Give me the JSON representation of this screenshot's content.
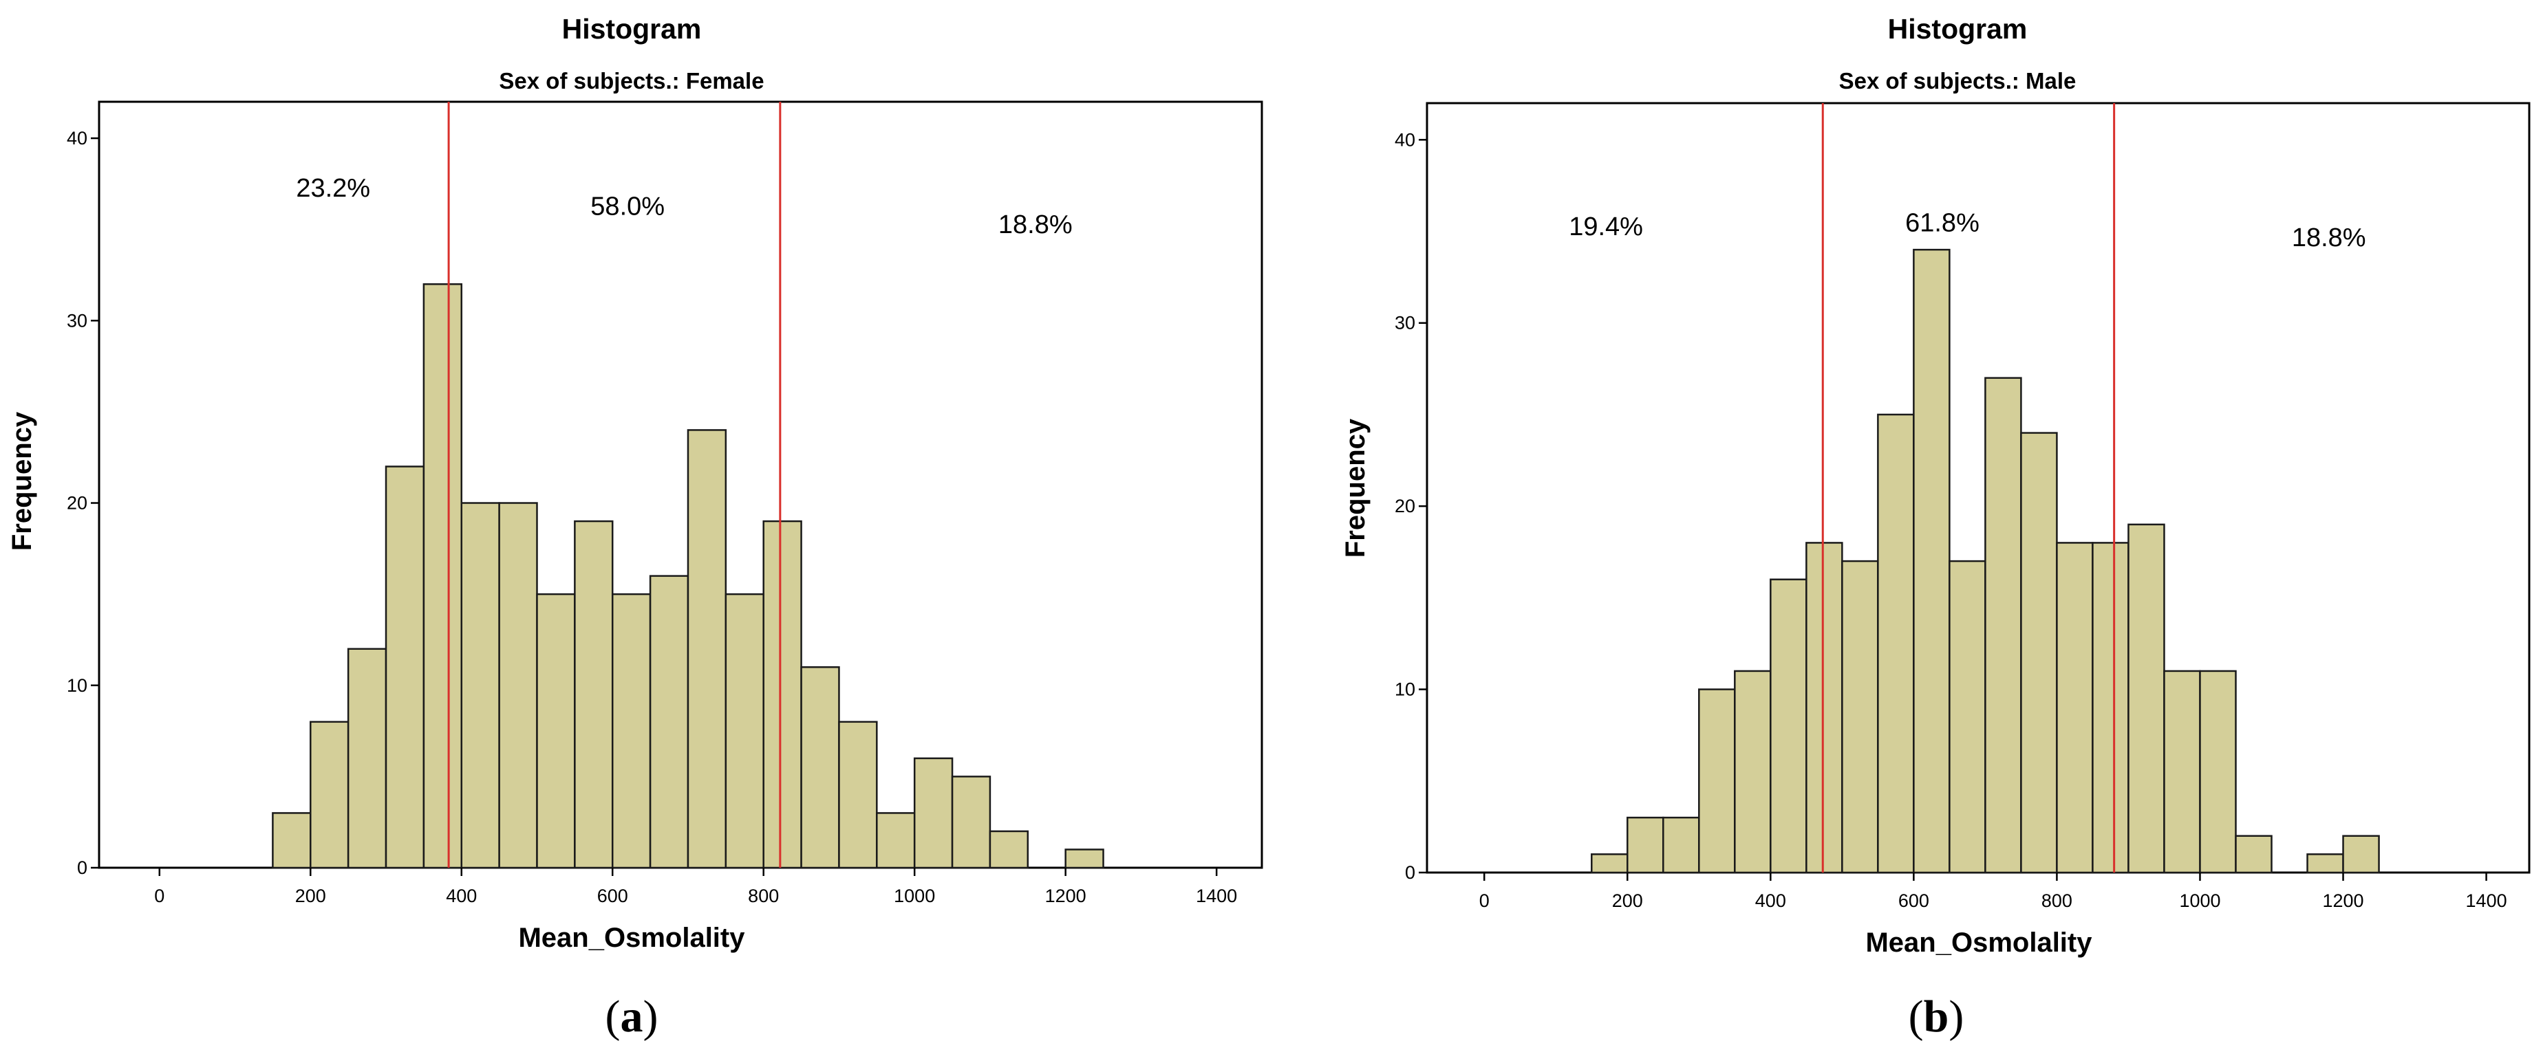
{
  "chart_data": [
    {
      "type": "bar",
      "panel": "a",
      "title": "Histogram",
      "subtitle": "Sex of subjects.: Female",
      "xlabel": "Mean_Osmolality",
      "ylabel": "Frequency",
      "xlim": [
        -80,
        1460
      ],
      "ylim": [
        0,
        42
      ],
      "xticks": [
        0,
        200,
        400,
        600,
        800,
        1000,
        1200,
        1400
      ],
      "yticks": [
        0,
        10,
        20,
        30,
        40
      ],
      "bin_width": 50,
      "bin_starts": [
        150,
        200,
        250,
        300,
        350,
        400,
        450,
        500,
        550,
        600,
        650,
        700,
        750,
        800,
        850,
        900,
        950,
        1000,
        1050,
        1100,
        1150,
        1200
      ],
      "values": [
        3,
        8,
        12,
        22,
        32,
        20,
        20,
        15,
        19,
        15,
        16,
        24,
        15,
        19,
        11,
        8,
        3,
        6,
        5,
        2,
        0,
        1
      ],
      "reference_lines": [
        383,
        822
      ],
      "annotations": [
        {
          "text": "23.2%",
          "x": 230,
          "y": 36.8
        },
        {
          "text": "58.0%",
          "x": 620,
          "y": 35.8
        },
        {
          "text": "18.8%",
          "x": 1160,
          "y": 34.8
        }
      ],
      "bar_color": "#d4cf99",
      "reference_line_color": "#d9302c"
    },
    {
      "type": "bar",
      "panel": "b",
      "title": "Histogram",
      "subtitle": "Sex of subjects.: Male",
      "xlabel": "Mean_Osmolality",
      "ylabel": "Frequency",
      "xlim": [
        -80,
        1460
      ],
      "ylim": [
        0,
        42
      ],
      "xticks": [
        0,
        200,
        400,
        600,
        800,
        1000,
        1200,
        1400
      ],
      "yticks": [
        0,
        10,
        20,
        30,
        40
      ],
      "bin_width": 50,
      "bin_starts": [
        150,
        200,
        250,
        300,
        350,
        400,
        450,
        500,
        550,
        600,
        650,
        700,
        750,
        800,
        850,
        900,
        950,
        1000,
        1050,
        1100,
        1150,
        1200
      ],
      "values": [
        1,
        3,
        3,
        10,
        11,
        16,
        18,
        17,
        25,
        34,
        17,
        27,
        24,
        18,
        18,
        19,
        11,
        11,
        2,
        0,
        1,
        2
      ],
      "reference_lines": [
        473,
        880
      ],
      "annotations": [
        {
          "text": "19.4%",
          "x": 170,
          "y": 34.8
        },
        {
          "text": "61.8%",
          "x": 640,
          "y": 35.0
        },
        {
          "text": "18.8%",
          "x": 1180,
          "y": 34.2
        }
      ],
      "bar_color": "#d4cf99",
      "reference_line_color": "#d9302c"
    }
  ],
  "captions": [
    "a",
    "b"
  ]
}
